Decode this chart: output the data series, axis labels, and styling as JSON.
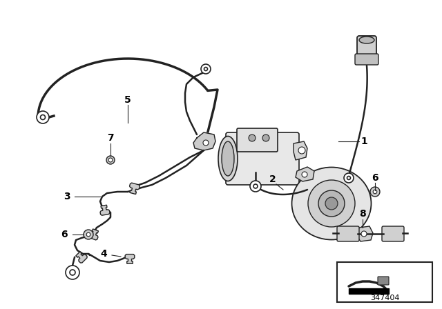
{
  "part_number": "347404",
  "background_color": "#ffffff",
  "line_color": "#222222",
  "gray_light": "#cccccc",
  "gray_med": "#999999",
  "gray_dark": "#555555",
  "fig_width": 6.4,
  "fig_height": 4.48,
  "dpi": 100,
  "border_color": "#aaaaaa"
}
